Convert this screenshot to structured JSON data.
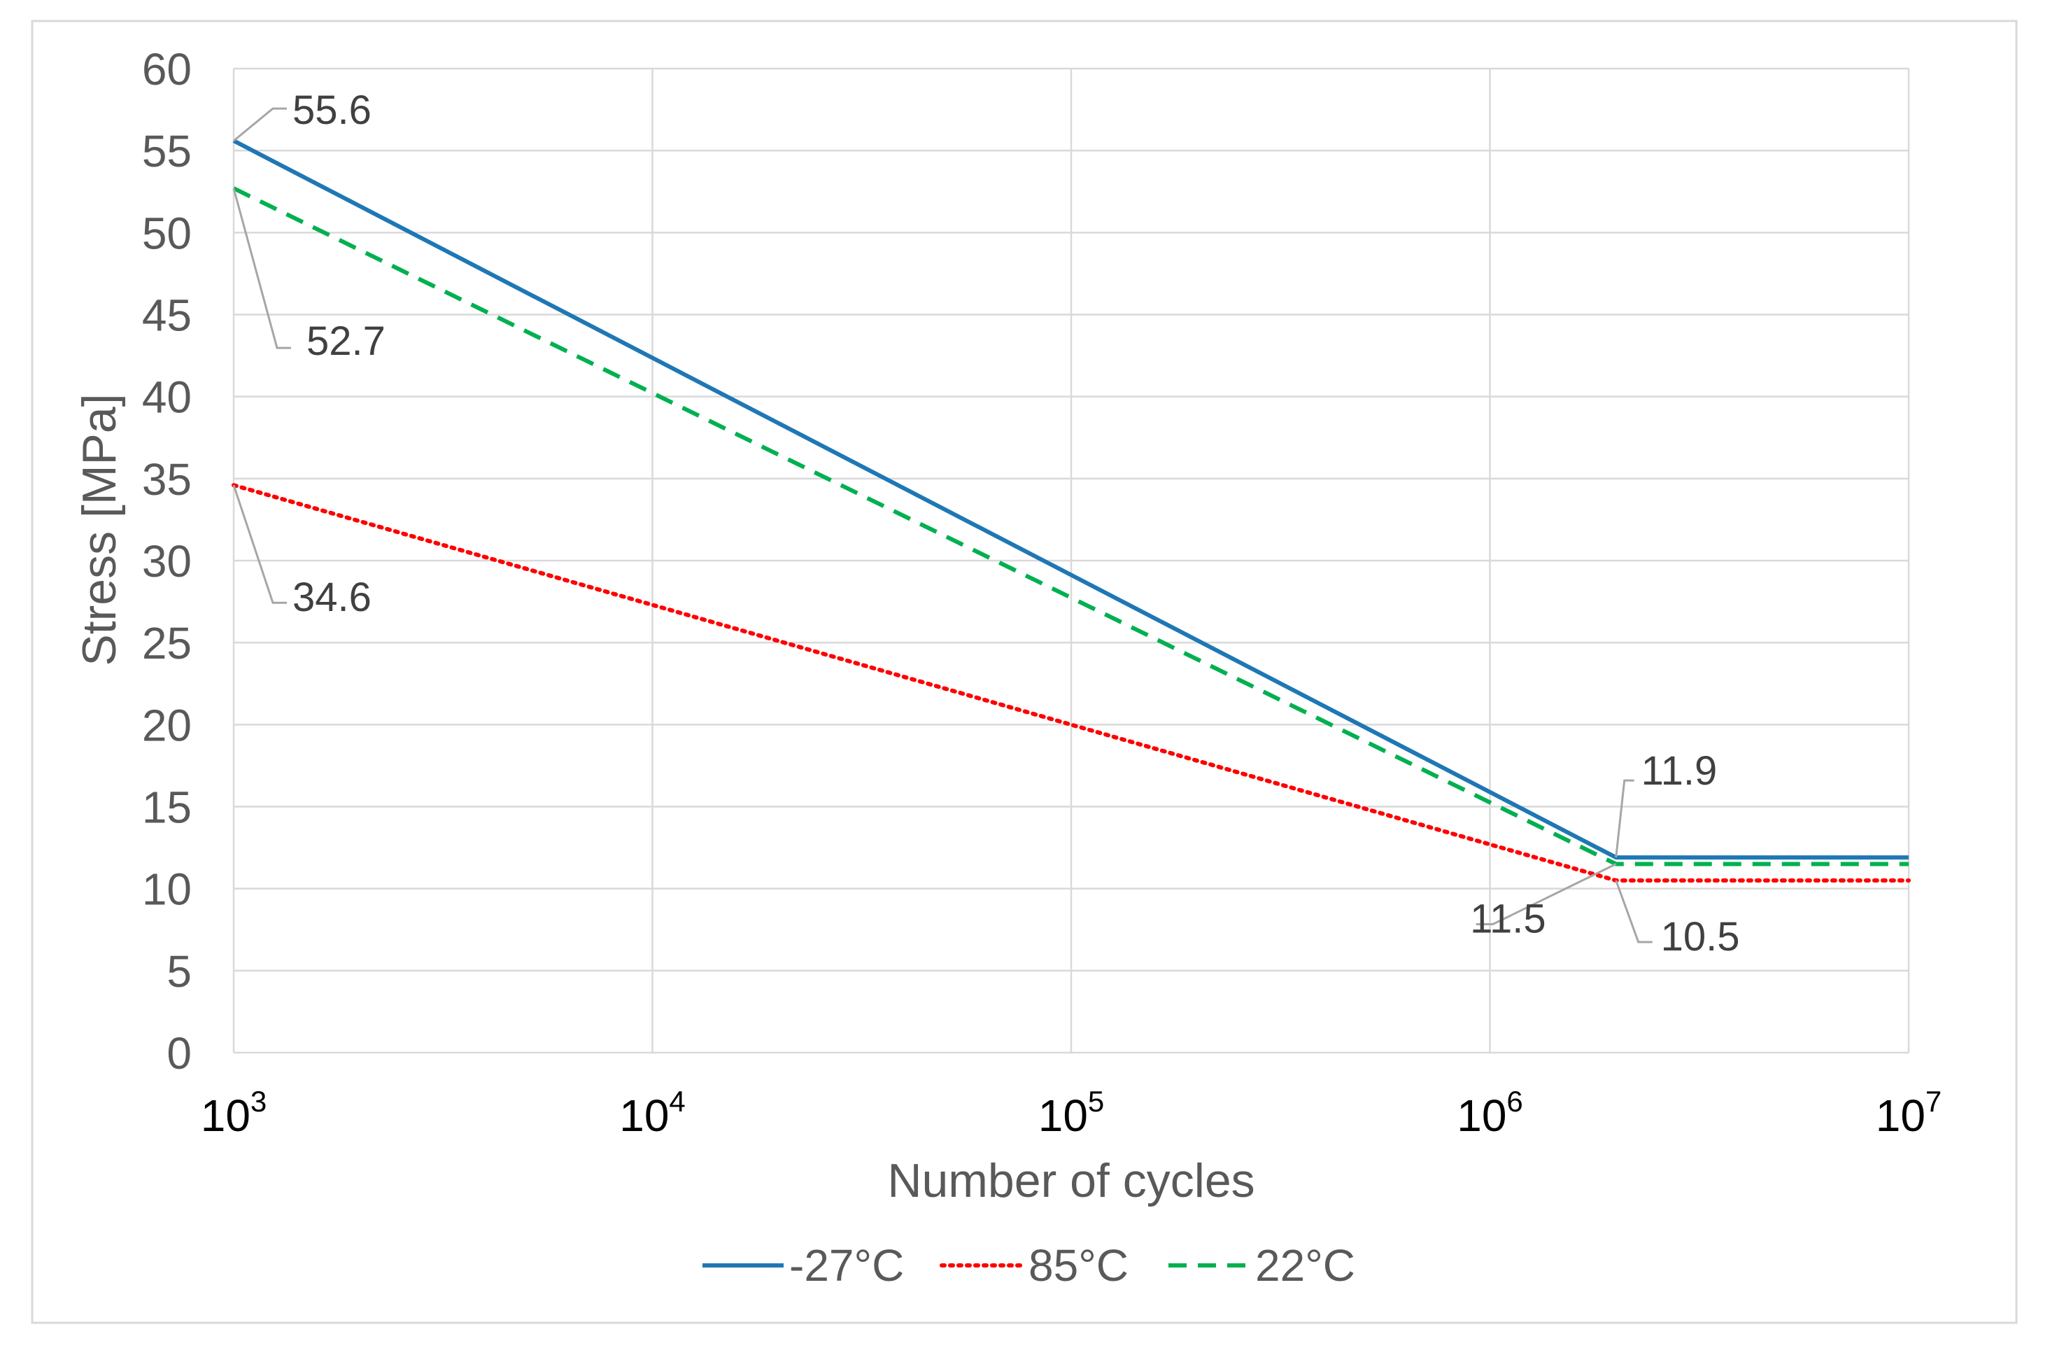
{
  "chart_data": {
    "type": "line",
    "title": "",
    "xlabel": "Number of cycles",
    "ylabel": "Stress [MPa]",
    "x_scale": "log",
    "xlim": [
      1000,
      10000000
    ],
    "ylim": [
      0,
      60
    ],
    "grid": true,
    "legend_position": "bottom",
    "x_ticks": [
      {
        "value": 1000,
        "base": "10",
        "exp": "3"
      },
      {
        "value": 10000,
        "base": "10",
        "exp": "4"
      },
      {
        "value": 100000,
        "base": "10",
        "exp": "5"
      },
      {
        "value": 1000000,
        "base": "10",
        "exp": "6"
      },
      {
        "value": 10000000,
        "base": "10",
        "exp": "7"
      }
    ],
    "y_ticks": [
      0,
      5,
      10,
      15,
      20,
      25,
      30,
      35,
      40,
      45,
      50,
      55,
      60
    ],
    "series": [
      {
        "name": "-27°C",
        "color": "#1f77b4",
        "style": "solid",
        "x": [
          1000,
          2000000,
          10000000
        ],
        "y": [
          55.6,
          11.9,
          11.9
        ]
      },
      {
        "name": "85°C",
        "color": "#ff0000",
        "style": "dotted",
        "x": [
          1000,
          2000000,
          10000000
        ],
        "y": [
          34.6,
          10.5,
          10.5
        ]
      },
      {
        "name": "22°C",
        "color": "#00b050",
        "style": "dashed",
        "x": [
          1000,
          2000000,
          10000000
        ],
        "y": [
          52.7,
          11.5,
          11.5
        ]
      }
    ],
    "annotations": [
      {
        "text": "55.6",
        "x": 1000,
        "y": 55.6
      },
      {
        "text": "52.7",
        "x": 1000,
        "y": 52.7
      },
      {
        "text": "34.6",
        "x": 1000,
        "y": 34.6
      },
      {
        "text": "11.9",
        "x": 2000000,
        "y": 11.9
      },
      {
        "text": "11.5",
        "x": 2000000,
        "y": 11.5
      },
      {
        "text": "10.5",
        "x": 2000000,
        "y": 10.5
      }
    ]
  },
  "colors": {
    "grid": "#d9d9d9",
    "axis_text": "#595959",
    "leader": "#a6a6a6",
    "frame": "#d9d9d9"
  }
}
